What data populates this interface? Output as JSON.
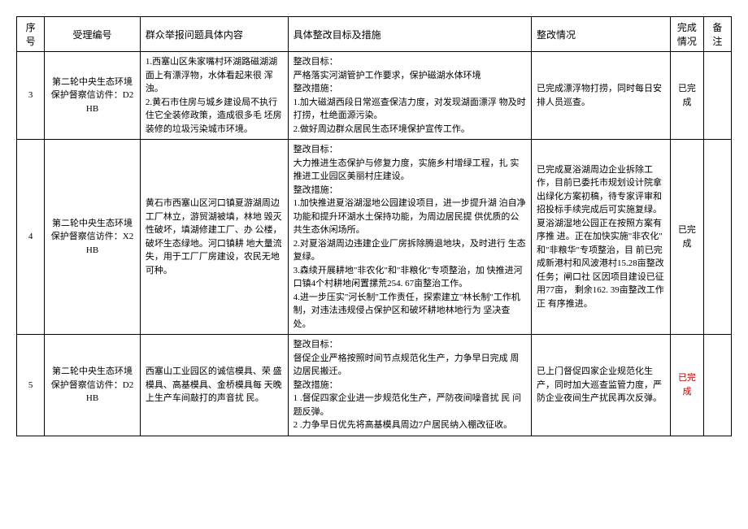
{
  "headers": {
    "seq": "序号",
    "id": "受理编号",
    "problem": "群众举报问题具体内容",
    "measure": "具体整改目标及措施",
    "rect": "整改情况",
    "status": "完成情况",
    "note": "备注"
  },
  "rows": [
    {
      "seq": "3",
      "id": "第二轮中央生态环境保护督察信访件：D2HB",
      "problem": "1.西塞山区朱家嘴村环湖路磁湖湖面上有漂浮物，水体看起来很 浑浊。\n2.黄石市住房与城乡建设局不执行住它全装修政策，造成很多毛 坯房装修的垃圾污染城市环境。",
      "measure": "整改目标：\n严格落实河湖管护工作要求，保护磁湖水体环境\n整改措施：\n1.加大磁湖西段日常巡查保洁力度，对发现湖面漂浮 物及时打捞，杜绝面源污染。\n2.做好周边群众居民生态环境保护宣传工作。",
      "rect": "已完成漂浮物打捞，同时每日安排人员巡查。",
      "status": "已完成",
      "status_red": false,
      "note": ""
    },
    {
      "seq": "4",
      "id": "第二轮中央生态环境保护督察信访件：X2HB",
      "problem": "黄石市西塞山区河口镇夏游湖周边工厂林立，游贸湖被填，林地 毁灭性破坏，填湖修建工厂、办 公楼，破坏生态绿地。河口镇耕 地大量流失，用于工厂厂房建设，农民无地可种。",
      "measure": "整改目标：\n大力推进生态保护与修复力度，实施乡村增绿工程，扎 实推进工业园区美丽村庄建设。\n整改措施：\n1.加快推进夏浴湖湿地公园建设项目，进一步提升湖 泊自净功能和提升环湖水土保持功能，为周边居民提 供优质的公共生态休闲场所。\n2.对夏浴湖周边违建企业厂房拆除腾退地块，及时进行 生态复绿。\n3.森续开展耕地\"非农化\"和\"非粮化\"专项整治，加 快推进河口镇4个村耕地闲置摞荒254. 67亩整治工作。\n4.进一步压实\"河长制\"工作责任，探索建立\"林长制\"工作机制，对违法违规侵占保护区和破坏耕地林地行为 坚决查处。",
      "rect": "已完成夏浴湖周边企业拆除工作，目前已委托市规划设计院拿出绿化方案初稿，待专家评审和招投标手续完成后可实施复绿。夏浴湖湿地公园正在按照方案有序推 进。正在加快实施\"非农化\" 和\"非粮华\"专项整治，目 前已完成新港村和风波港村15.28亩整改任务；闸口社 区因项目建设已征用77亩， 剩余162. 39亩整改工作正 有序推进。",
      "status": "已完成",
      "status_red": false,
      "note": ""
    },
    {
      "seq": "5",
      "id": "第二轮中央生态环境保护督察信访件：D2HB",
      "problem": "西塞山工业园区的诚信模具、荣 盛模具、高基模具、金桥模具每 天晚上生产车间敲打的声音扰 民。",
      "measure": "整改目标：\n督促企业严格按照时间节点规范化生产，力争早日完成 周边居民搬迁。\n整改措施：\n1         .督促四家企业进一步规范化生产，严防夜间噪音扰 民 问题反弹。\n2         .力争早日优先将高基模具周边7户居民纳入棚改征收。",
      "rect": "已上门督促四家企业规范化生产，同时加大巡查监管力度，严防企业夜间生产扰民再次反弹。",
      "status": "已完成",
      "status_red": true,
      "note": ""
    }
  ]
}
